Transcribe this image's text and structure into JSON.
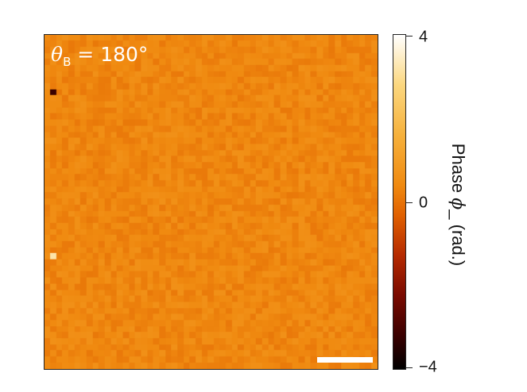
{
  "chart_data": {
    "type": "heatmap",
    "panel_label": {
      "symbol": "θ",
      "subscript": "B",
      "rest": " = 180°"
    },
    "colorbar": {
      "title_prefix": "Phase ",
      "title_symbol": "ϕ",
      "title_subscript": "_",
      "title_suffix": "  (rad.)",
      "ticks": [
        "4",
        "0",
        "−4"
      ],
      "tick_values": [
        4,
        0,
        -4
      ],
      "range": [
        -4,
        4
      ],
      "colormap": "afmhot"
    },
    "grid": {
      "rows": 55,
      "cols": 55,
      "background_value": 0.35,
      "noise_amplitude": 0.25
    },
    "outliers": [
      {
        "row": 9,
        "col": 1,
        "value": -3.2
      },
      {
        "row": 36,
        "col": 1,
        "value": 3.2
      }
    ],
    "scale_bar": true
  }
}
